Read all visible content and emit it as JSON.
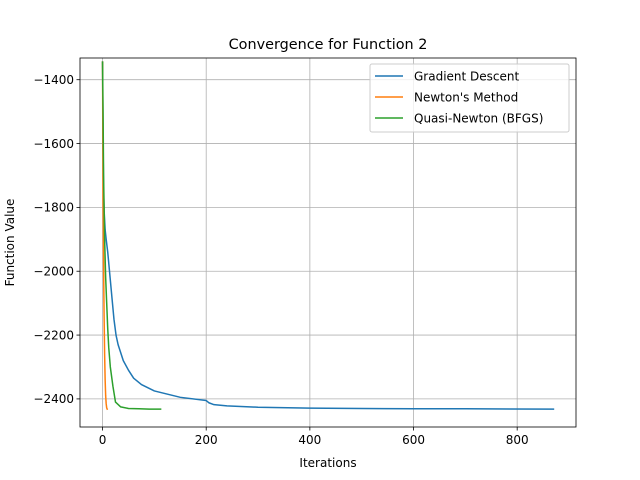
{
  "chart_data": {
    "type": "line",
    "title": "Convergence for Function 2",
    "xlabel": "Iterations",
    "ylabel": "Function Value",
    "xlim": [
      -43.5,
      913.5
    ],
    "ylim": [
      -2488,
      -1332
    ],
    "xticks": [
      0,
      200,
      400,
      600,
      800
    ],
    "yticks": [
      -1400,
      -1600,
      -1800,
      -2000,
      -2200,
      -2400
    ],
    "grid": true,
    "legend": "top-right",
    "series": [
      {
        "name": "Gradient Descent",
        "color": "#1f77b4",
        "x": [
          0,
          1,
          2,
          3,
          5,
          7,
          10,
          14,
          18,
          22,
          26,
          30,
          40,
          50,
          60,
          75,
          100,
          150,
          200,
          205,
          215,
          240,
          300,
          400,
          500,
          600,
          700,
          870
        ],
        "y": [
          -1345,
          -1600,
          -1750,
          -1810,
          -1870,
          -1900,
          -1940,
          -2010,
          -2080,
          -2150,
          -2200,
          -2230,
          -2280,
          -2310,
          -2335,
          -2355,
          -2375,
          -2395,
          -2405,
          -2412,
          -2418,
          -2422,
          -2426,
          -2429,
          -2430,
          -2431,
          -2431,
          -2432
        ]
      },
      {
        "name": "Newton's Method",
        "color": "#ff7f0e",
        "x": [
          0,
          1,
          2,
          3,
          4,
          5,
          6,
          7,
          8,
          9
        ],
        "y": [
          -1345,
          -1780,
          -1980,
          -2140,
          -2260,
          -2340,
          -2390,
          -2415,
          -2428,
          -2432
        ]
      },
      {
        "name": "Quasi-Newton (BFGS)",
        "color": "#2ca02c",
        "x": [
          0,
          1,
          2,
          4,
          6,
          8,
          10,
          12,
          15,
          20,
          25,
          35,
          50,
          70,
          90,
          112
        ],
        "y": [
          -1345,
          -1500,
          -1700,
          -1900,
          -2020,
          -2100,
          -2180,
          -2240,
          -2300,
          -2360,
          -2410,
          -2425,
          -2430,
          -2431,
          -2432,
          -2432
        ]
      }
    ]
  }
}
